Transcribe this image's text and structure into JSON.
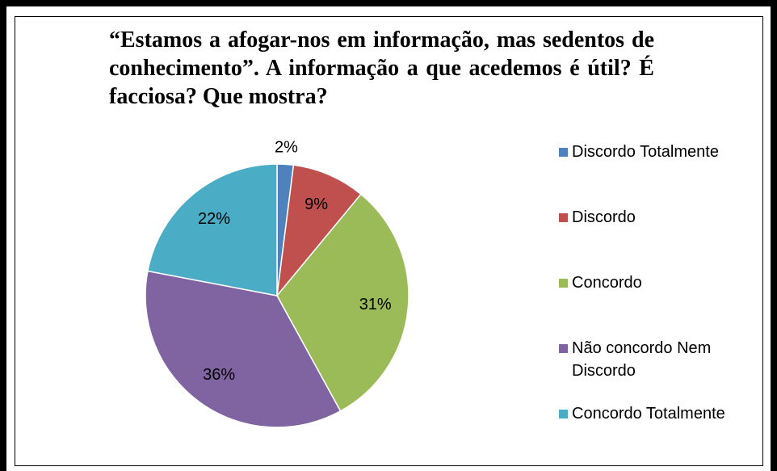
{
  "chart_data": {
    "type": "pie",
    "title": "“Estamos a afogar-nos em informação, mas sedentos de conhecimento”. A informação a que acedemos é útil? É facciosa? Que mostra?",
    "categories": [
      "Discordo Totalmente",
      "Discordo",
      "Concordo",
      "Não concordo Nem Discordo",
      "Concordo Totalmente"
    ],
    "values": [
      2,
      9,
      31,
      36,
      22
    ],
    "value_labels": [
      "2%",
      "9%",
      "31%",
      "36%",
      "22%"
    ],
    "colors": [
      "#4f81bd",
      "#c0504d",
      "#9bbb59",
      "#8064a2",
      "#4bacc6"
    ],
    "legend": "right"
  }
}
